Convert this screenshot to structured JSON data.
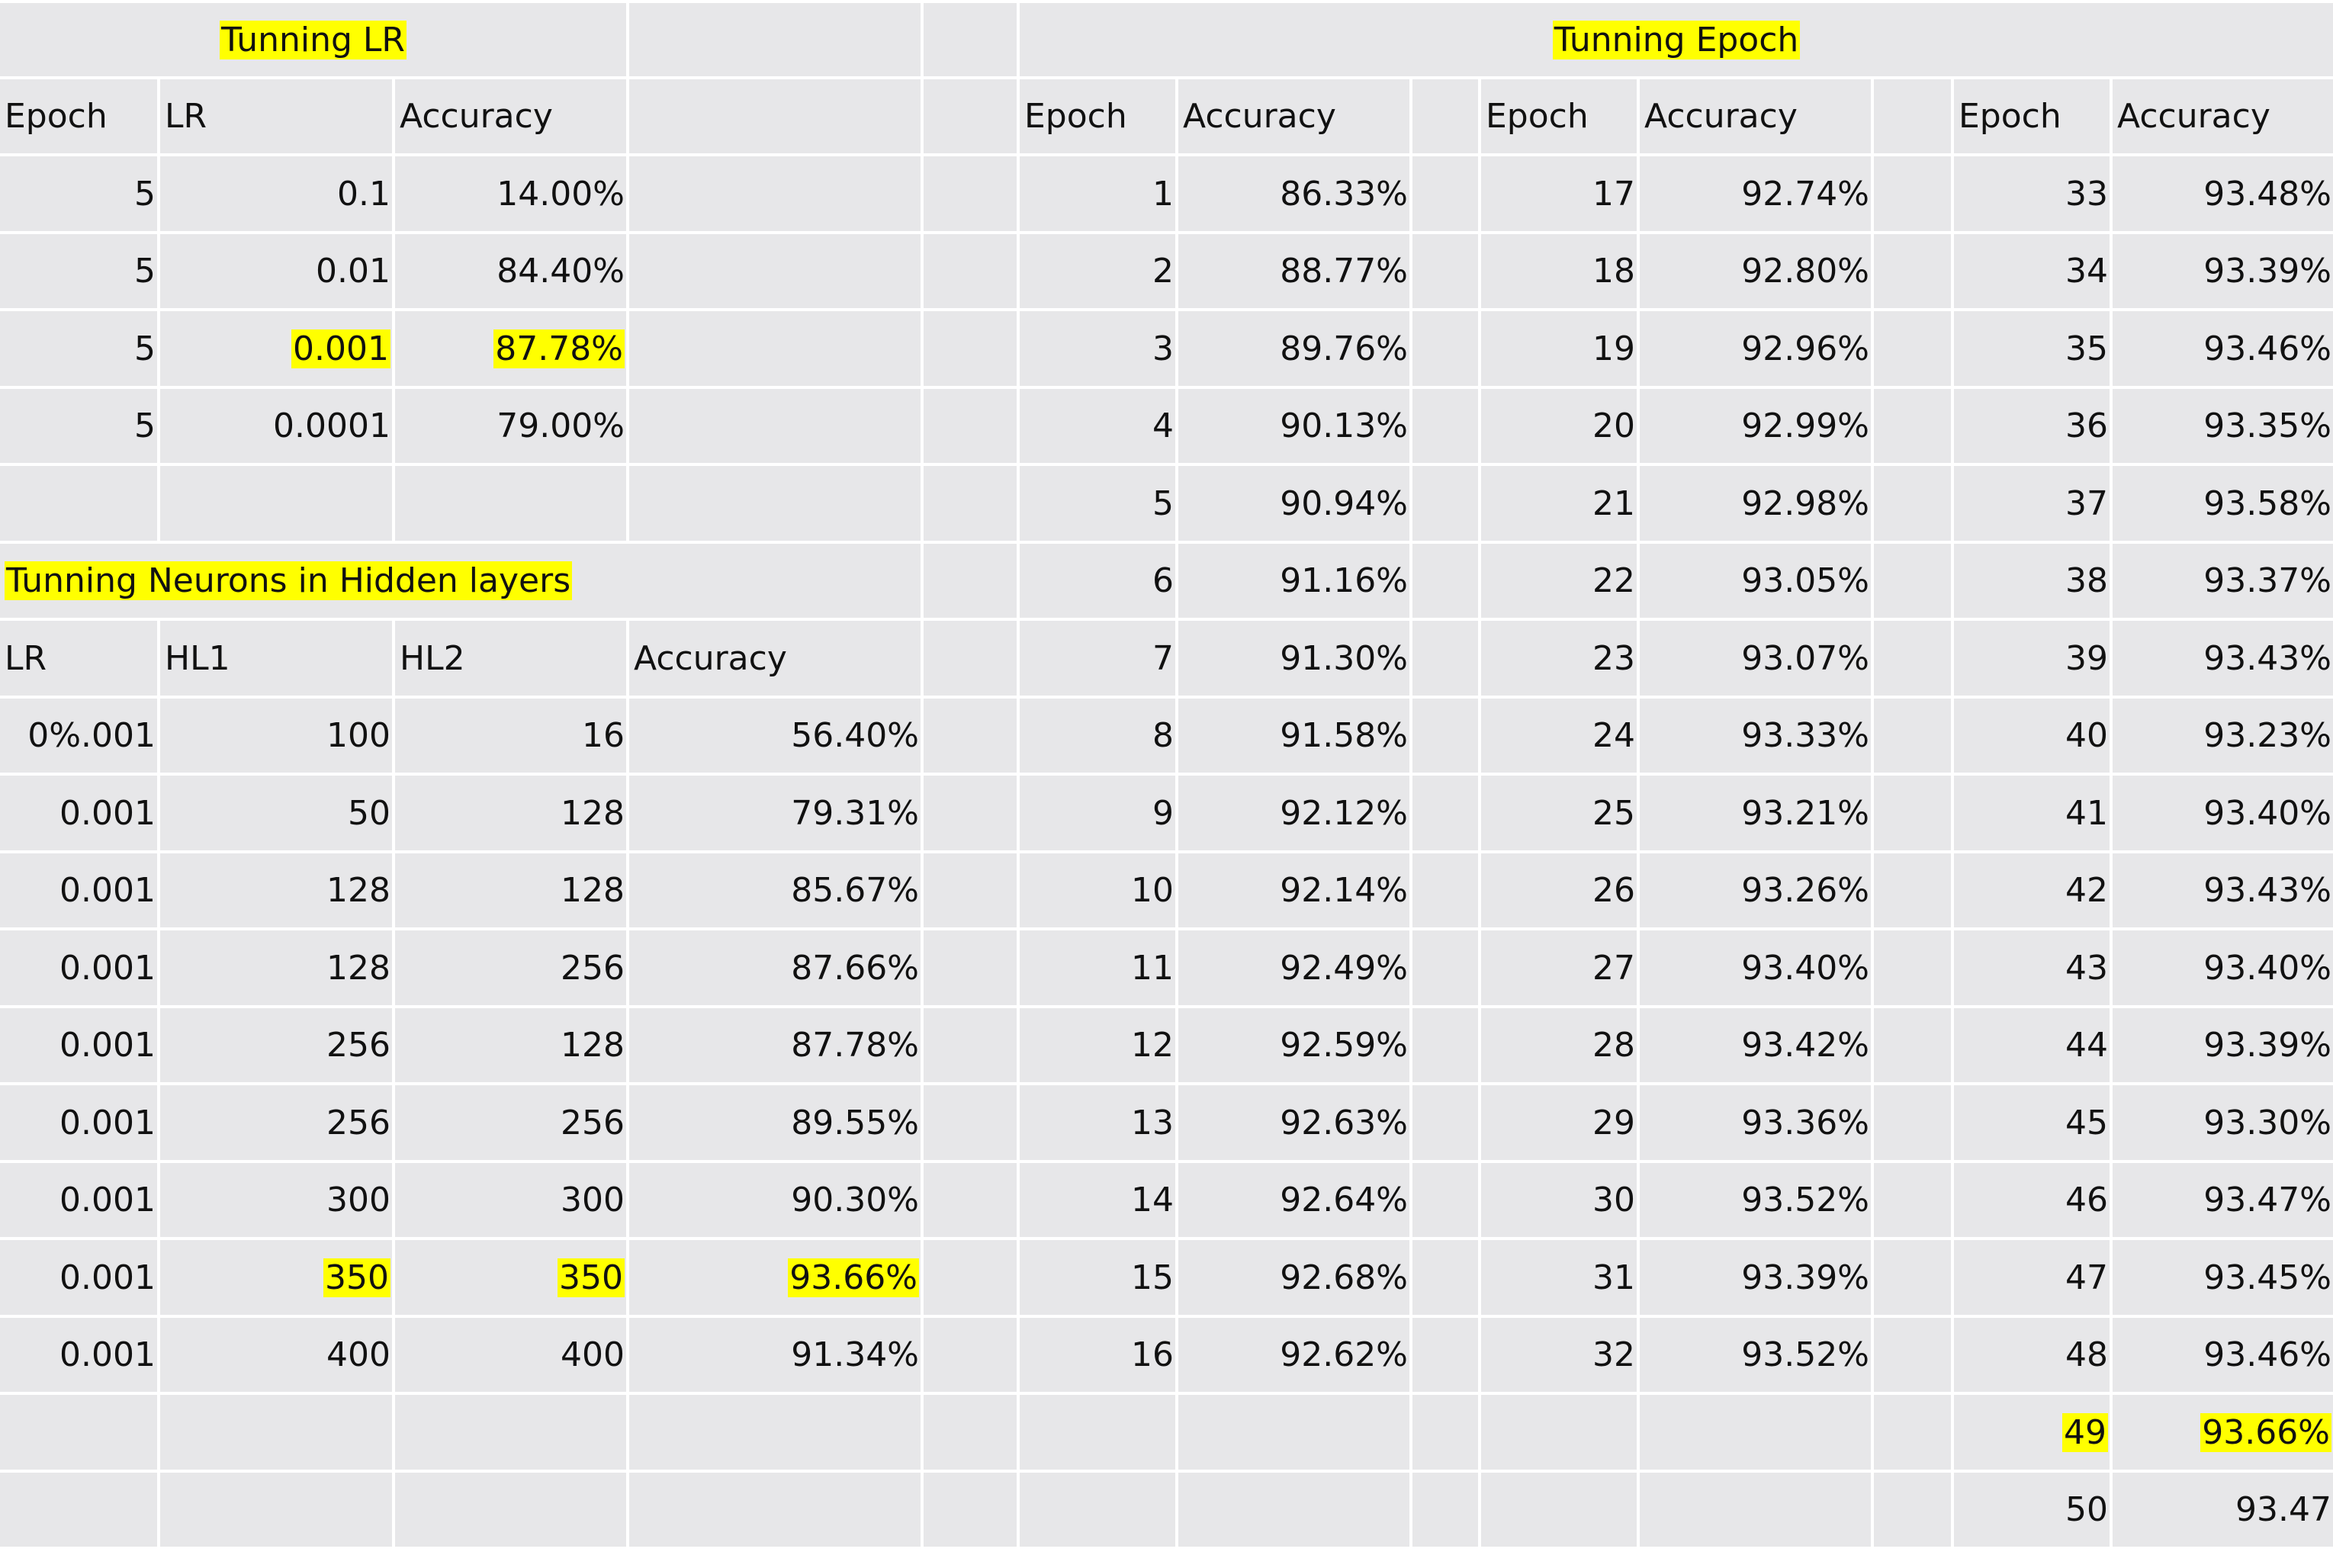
{
  "lr_section": {
    "title": "Tunning LR",
    "headers": [
      "Epoch",
      "LR",
      "Accuracy"
    ],
    "rows": [
      [
        "5",
        "0.1",
        "14.00%"
      ],
      [
        "5",
        "0.01",
        "84.40%"
      ],
      [
        "5",
        "0.001",
        "87.78%"
      ],
      [
        "5",
        "0.0001",
        "79.00%"
      ]
    ],
    "highlighted_row": 2
  },
  "neurons_section": {
    "title": "Tunning Neurons in Hidden layers",
    "headers": [
      "LR",
      "HL1",
      "HL2",
      "Accuracy"
    ],
    "rows": [
      [
        "0%.001",
        "100",
        "16",
        "56.40%"
      ],
      [
        "0.001",
        "50",
        "128",
        "79.31%"
      ],
      [
        "0.001",
        "128",
        "128",
        "85.67%"
      ],
      [
        "0.001",
        "128",
        "256",
        "87.66%"
      ],
      [
        "0.001",
        "256",
        "128",
        "87.78%"
      ],
      [
        "0.001",
        "256",
        "256",
        "89.55%"
      ],
      [
        "0.001",
        "300",
        "300",
        "90.30%"
      ],
      [
        "0.001",
        "350",
        "350",
        "93.66%"
      ],
      [
        "0.001",
        "400",
        "400",
        "91.34%"
      ]
    ],
    "highlighted_row": 7
  },
  "epoch_section": {
    "title": "Tunning Epoch",
    "headers": [
      "Epoch",
      "Accuracy"
    ],
    "column_a": [
      [
        "1",
        "86.33%"
      ],
      [
        "2",
        "88.77%"
      ],
      [
        "3",
        "89.76%"
      ],
      [
        "4",
        "90.13%"
      ],
      [
        "5",
        "90.94%"
      ],
      [
        "6",
        "91.16%"
      ],
      [
        "7",
        "91.30%"
      ],
      [
        "8",
        "91.58%"
      ],
      [
        "9",
        "92.12%"
      ],
      [
        "10",
        "92.14%"
      ],
      [
        "11",
        "92.49%"
      ],
      [
        "12",
        "92.59%"
      ],
      [
        "13",
        "92.63%"
      ],
      [
        "14",
        "92.64%"
      ],
      [
        "15",
        "92.68%"
      ],
      [
        "16",
        "92.62%"
      ]
    ],
    "column_b": [
      [
        "17",
        "92.74%"
      ],
      [
        "18",
        "92.80%"
      ],
      [
        "19",
        "92.96%"
      ],
      [
        "20",
        "92.99%"
      ],
      [
        "21",
        "92.98%"
      ],
      [
        "22",
        "93.05%"
      ],
      [
        "23",
        "93.07%"
      ],
      [
        "24",
        "93.33%"
      ],
      [
        "25",
        "93.21%"
      ],
      [
        "26",
        "93.26%"
      ],
      [
        "27",
        "93.40%"
      ],
      [
        "28",
        "93.42%"
      ],
      [
        "29",
        "93.36%"
      ],
      [
        "30",
        "93.52%"
      ],
      [
        "31",
        "93.39%"
      ],
      [
        "32",
        "93.52%"
      ]
    ],
    "column_c": [
      [
        "33",
        "93.48%"
      ],
      [
        "34",
        "93.39%"
      ],
      [
        "35",
        "93.46%"
      ],
      [
        "36",
        "93.35%"
      ],
      [
        "37",
        "93.58%"
      ],
      [
        "38",
        "93.37%"
      ],
      [
        "39",
        "93.43%"
      ],
      [
        "40",
        "93.23%"
      ],
      [
        "41",
        "93.40%"
      ],
      [
        "42",
        "93.43%"
      ],
      [
        "43",
        "93.40%"
      ],
      [
        "44",
        "93.39%"
      ],
      [
        "45",
        "93.30%"
      ],
      [
        "46",
        "93.47%"
      ],
      [
        "47",
        "93.45%"
      ],
      [
        "48",
        "93.46%"
      ],
      [
        "49",
        "93.66%"
      ],
      [
        "50",
        "93.47"
      ]
    ],
    "highlighted_epoch": "49"
  },
  "colors": {
    "cell_background": "#e7e7e9",
    "gridline": "#ffffff",
    "highlight": "#ffff00",
    "text": "#111111"
  }
}
